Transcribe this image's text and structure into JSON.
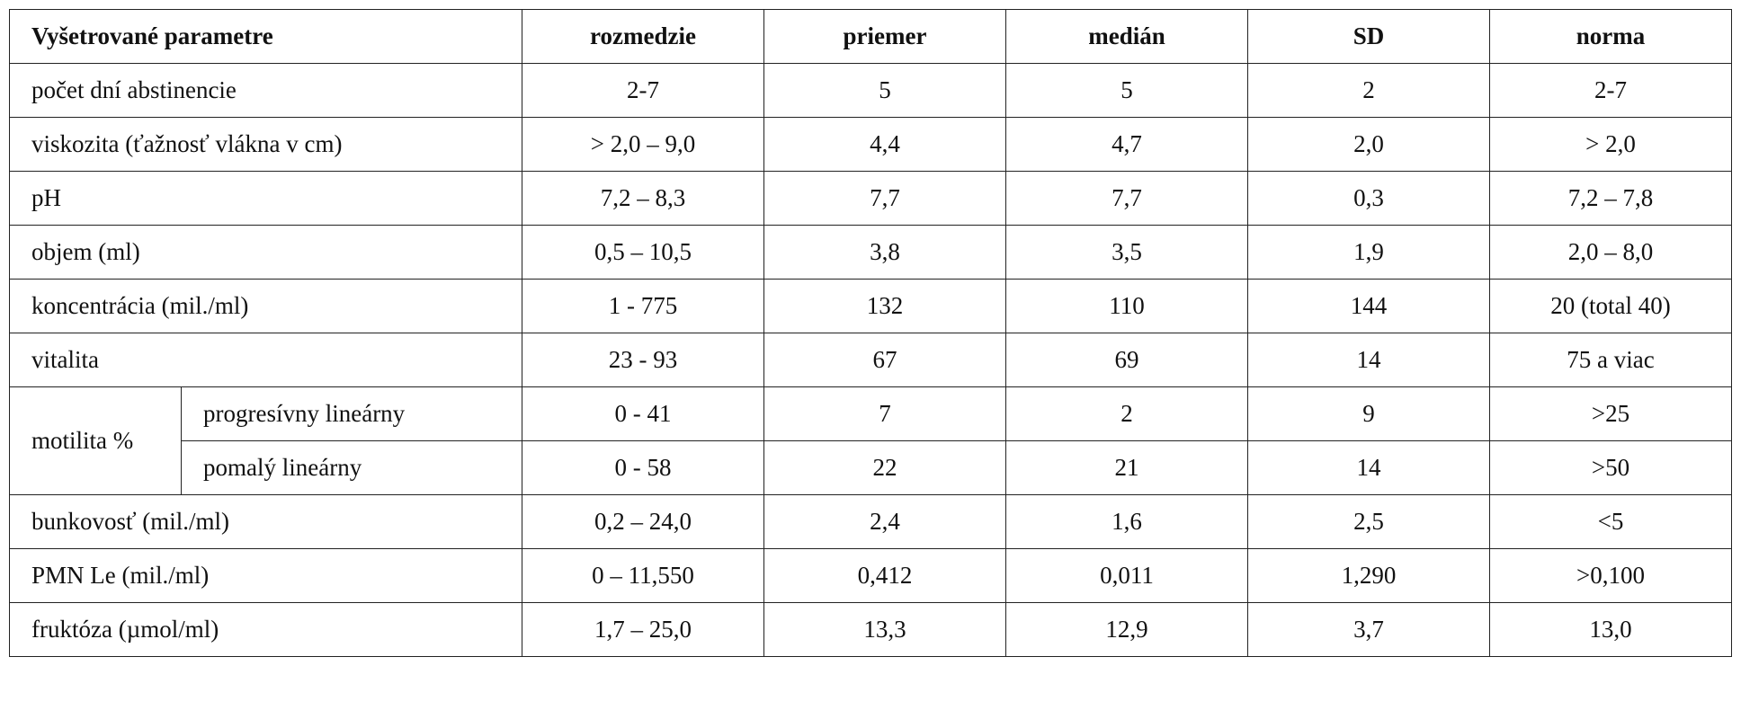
{
  "table": {
    "header": [
      "Vyšetrované parametre",
      "rozmedzie",
      "priemer",
      "medián",
      "SD",
      "norma"
    ],
    "rows": [
      [
        "počet dní abstinencie",
        "2-7",
        "5",
        "5",
        "2",
        "2-7"
      ],
      [
        "viskozita (ťažnosť vlákna v cm)",
        "> 2,0 – 9,0",
        "4,4",
        "4,7",
        "2,0",
        "> 2,0"
      ],
      [
        "pH",
        "7,2 – 8,3",
        "7,7",
        "7,7",
        "0,3",
        "7,2 – 7,8"
      ],
      [
        "objem (ml)",
        "0,5 – 10,5",
        "3,8",
        "3,5",
        "1,9",
        "2,0 – 8,0"
      ],
      [
        "koncentrácia (mil./ml)",
        "1 - 775",
        "132",
        "110",
        "144",
        "20 (total 40)"
      ],
      [
        "vitalita",
        "23 - 93",
        "67",
        "69",
        "14",
        "75 a viac"
      ],
      {
        "label": "motilita %",
        "subrows": [
          [
            "progresívny lineárny",
            "0 - 41",
            "7",
            "2",
            "9",
            ">25"
          ],
          [
            "pomalý lineárny",
            "0 - 58",
            "22",
            "21",
            "14",
            ">50"
          ]
        ]
      },
      [
        "bunkovosť (mil./ml)",
        "0,2 – 24,0",
        "2,4",
        "1,6",
        "2,5",
        "<5"
      ],
      [
        "PMN Le (mil./ml)",
        "0 – 11,550",
        "0,412",
        "0,011",
        "1,290",
        ">0,100"
      ],
      [
        "fruktóza (µmol/ml)",
        "1,7 – 25,0",
        "13,3",
        "12,9",
        "3,7",
        "13,0"
      ]
    ]
  }
}
